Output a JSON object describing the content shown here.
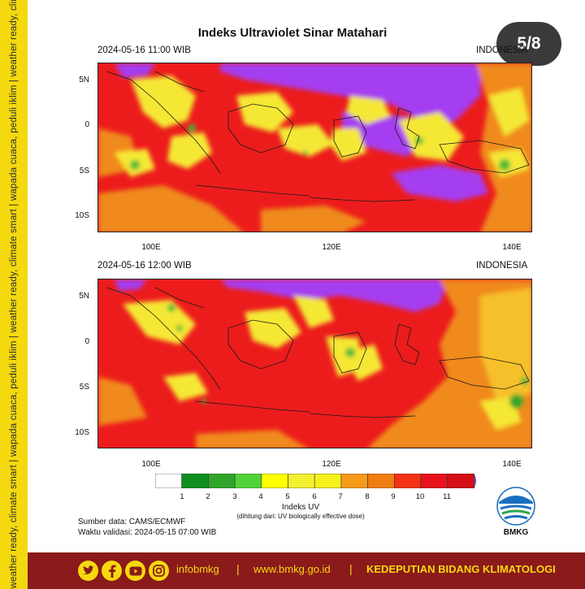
{
  "side_strip": {
    "text": "weather ready, climate smart  |  wapada cuaca, peduli iklim  |  weather ready, climate smart  |  wapada cuaca, peduli iklim  |  weather ready, climate smart  |  wapada cuaca, peduli iklim"
  },
  "title": "Indeks Ultraviolet Sinar Matahari",
  "slide_counter": "5/8",
  "maps": [
    {
      "datetime": "2024-05-16  11:00 WIB",
      "region": "INDONESIA"
    },
    {
      "datetime": "2024-05-16  12:00 WIB",
      "region": "INDONESIA"
    }
  ],
  "lat_ticks": [
    "5N",
    "0",
    "5S",
    "10S"
  ],
  "lon_ticks": [
    "100E",
    "120E",
    "140E"
  ],
  "colorbar": {
    "labels": [
      "1",
      "2",
      "3",
      "4",
      "5",
      "6",
      "7",
      "8",
      "9",
      "10",
      "11"
    ],
    "colors": [
      "#ffffff",
      "#0e8f1e",
      "#2fa52b",
      "#52d23a",
      "#ffff00",
      "#f3f030",
      "#f6f11c",
      "#f79a1a",
      "#f07d14",
      "#f43214",
      "#e8121c",
      "#d40f15",
      "#a53cf0"
    ],
    "title": "Indeks UV",
    "subtitle": "(dihitung dari: UV biologically effective dose)"
  },
  "source": {
    "line1": "Sumber data: CAMS/ECMWF",
    "line2": "Waktu validasi: 2024-05-15 07:00 WIB"
  },
  "logo": {
    "text": "BMKG",
    "icon": "bmkg-logo-icon"
  },
  "footer": {
    "handle": "infobmkg",
    "separator": "|",
    "website": "www.bmkg.go.id",
    "department": "KEDEPUTIAN BIDANG KLIMATOLOGI",
    "icons": [
      "twitter-icon",
      "facebook-icon",
      "youtube-icon",
      "instagram-icon"
    ]
  },
  "palette": {
    "purple": "#a53cf0",
    "red": "#ec1c1c",
    "orange": "#f08a1c",
    "yellow": "#f5e835",
    "green": "#3fb83a",
    "footer_bg": "#8b1a1a",
    "strip": "#f5d90f"
  }
}
